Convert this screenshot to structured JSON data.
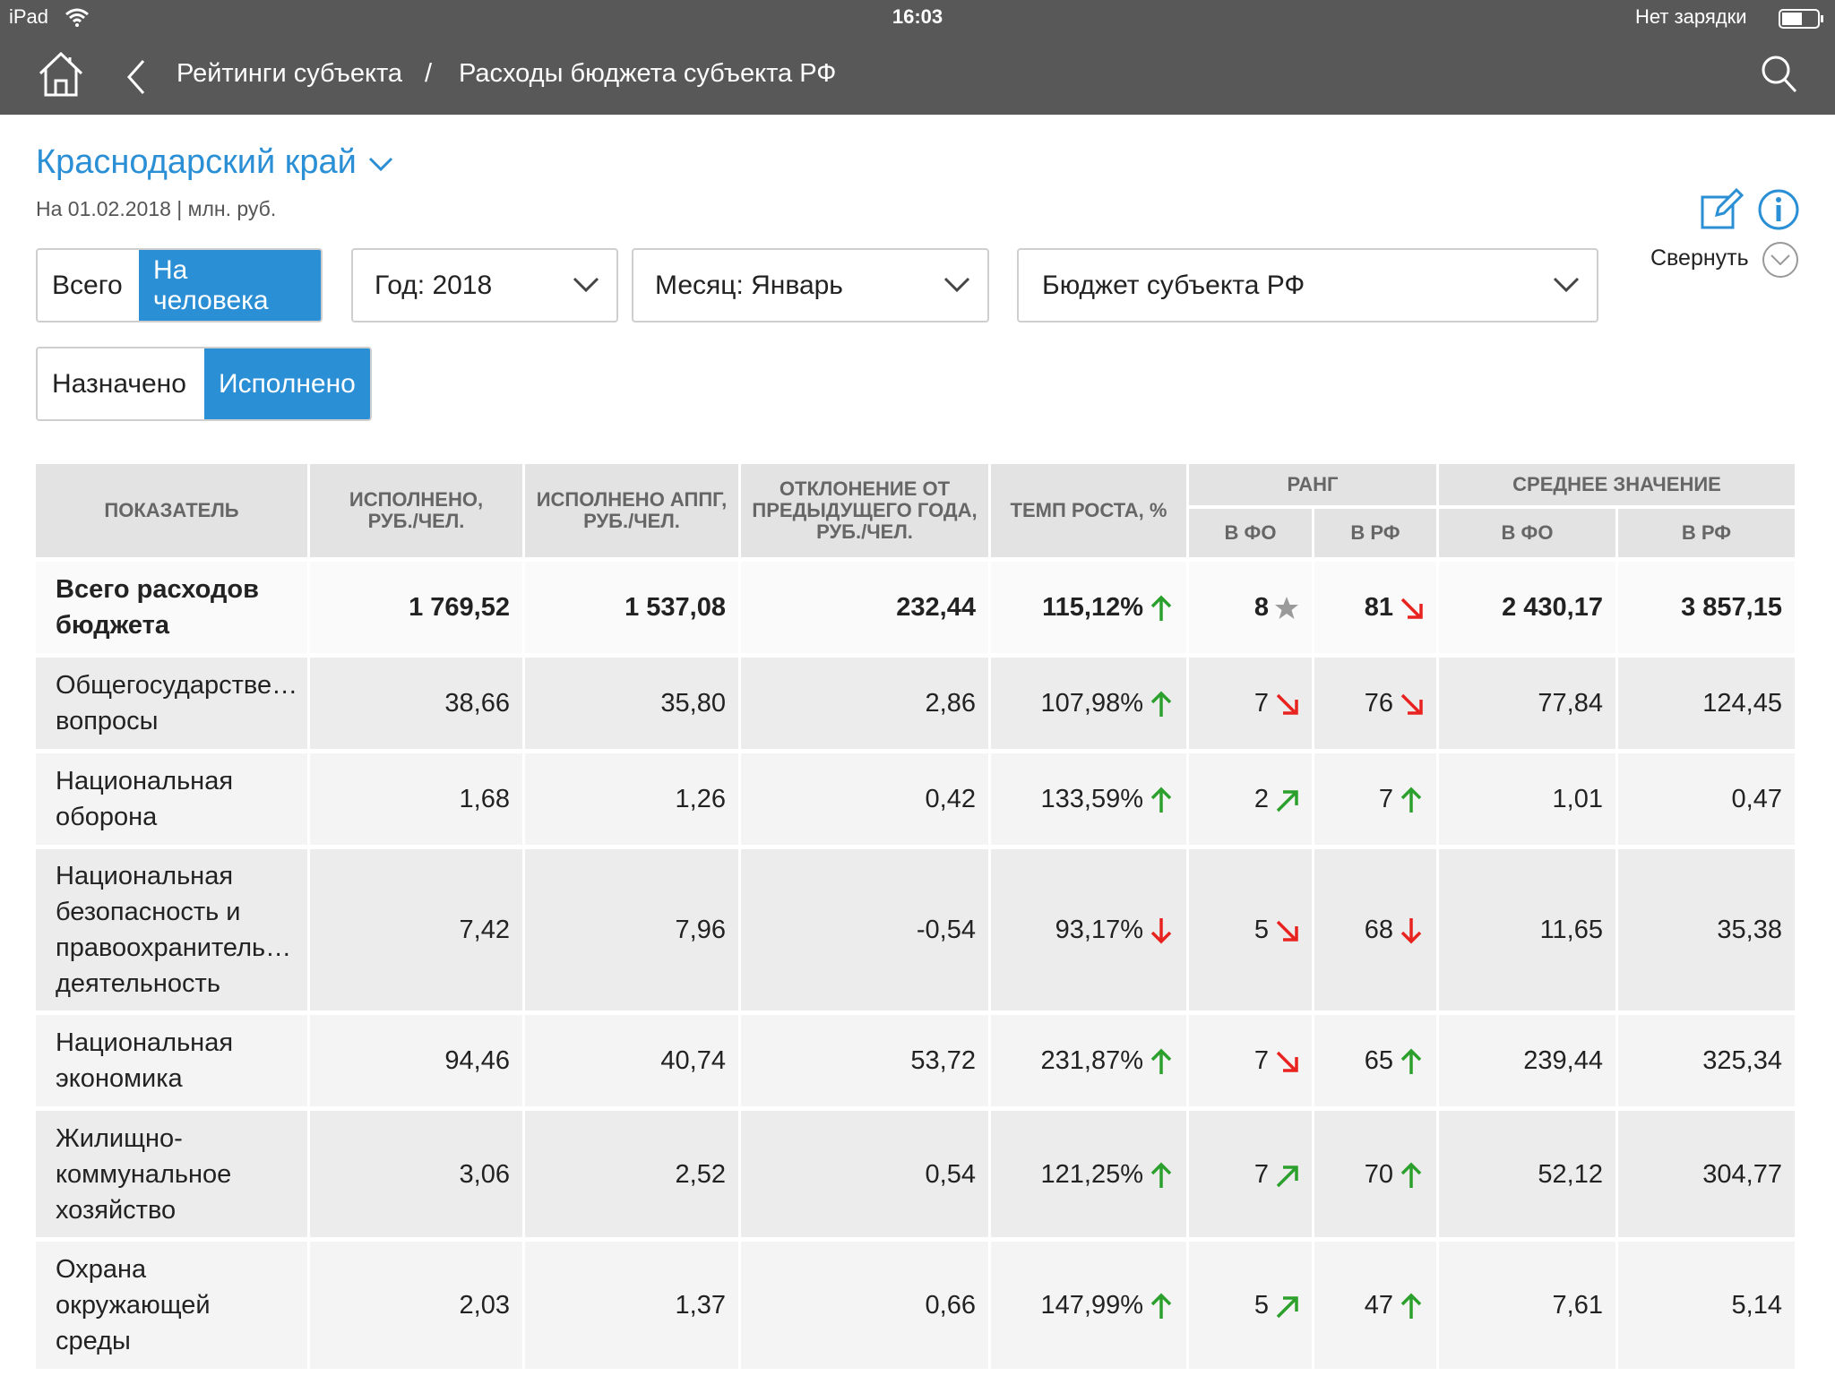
{
  "status_bar": {
    "device": "iPad",
    "time": "16:03",
    "battery": "Нет зарядки"
  },
  "nav": {
    "crumbs": [
      "Рейтинги субъекта",
      "Расходы бюджета субъекта РФ"
    ],
    "separator": "/"
  },
  "region": "Краснодарский край",
  "subtitle": "На 01.02.2018 | млн. руб.",
  "mode_toggle": [
    "Всего",
    "На человека"
  ],
  "dropdowns": [
    "Год: 2018",
    "Месяц: Январь",
    "Бюджет субъекта РФ"
  ],
  "collapse": "Свернуть",
  "plan_toggle": [
    "Назначено",
    "Исполнено"
  ],
  "table": {
    "headers": [
      "ПОКАЗАТЕЛЬ",
      "ИСПОЛНЕНО,\nРУБ./ЧЕЛ.",
      "ИСПОЛНЕНО АППГ,\nРУБ./ЧЕЛ.",
      "ОТКЛОНЕНИЕ ОТ\nПРЕДЫДУЩЕГО ГОДА,\nРУБ./ЧЕЛ.",
      "ТЕМП РОСТА, %"
    ],
    "groups": [
      {
        "title": "РАНГ",
        "sub": [
          "В ФО",
          "В РФ"
        ]
      },
      {
        "title": "СРЕДНЕЕ ЗНАЧЕНИЕ",
        "sub": [
          "В ФО",
          "В РФ"
        ]
      }
    ],
    "rows": [
      [
        "Всего расходов\nбюджета",
        "1 769,52",
        "1 537,08",
        "232,44",
        "115,12%",
        "8",
        "81",
        "2 430,17",
        "3 857,15"
      ],
      [
        "Общегосударстве…\nвопросы",
        "38,66",
        "35,80",
        "2,86",
        "107,98%",
        "7",
        "76",
        "77,84",
        "124,45"
      ],
      [
        "Национальная\nоборона",
        "1,68",
        "1,26",
        "0,42",
        "133,59%",
        "2",
        "7",
        "1,01",
        "0,47"
      ],
      [
        "Национальная\nбезопасность и\nправоохранитель…\nдеятельность",
        "7,42",
        "7,96",
        "-0,54",
        "93,17%",
        "5",
        "68",
        "11,65",
        "35,38"
      ],
      [
        "Национальная\nэкономика",
        "94,46",
        "40,74",
        "53,72",
        "231,87%",
        "7",
        "65",
        "239,44",
        "325,34"
      ],
      [
        "Жилищно-\nкоммунальное\nхозяйство",
        "3,06",
        "2,52",
        "0,54",
        "121,25%",
        "7",
        "70",
        "52,12",
        "304,77"
      ],
      [
        "Охрана\nокружающей\nсреды",
        "2,03",
        "1,37",
        "0,66",
        "147,99%",
        "5",
        "47",
        "7,61",
        "5,14"
      ]
    ]
  }
}
